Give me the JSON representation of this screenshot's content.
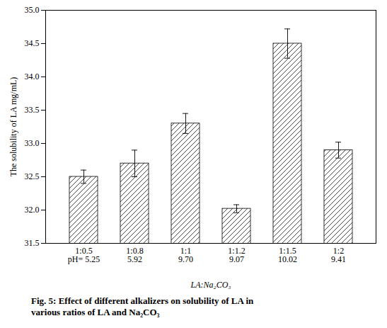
{
  "chart_data": {
    "type": "bar",
    "categories": [
      "1:0.5\npH= 5.25",
      "1:0.8\n5.92",
      "1:1\n9.70",
      "1:1.2\n9.07",
      "1:1.5\n10.02",
      "1:2\n9.41"
    ],
    "values": [
      32.5,
      32.7,
      33.3,
      32.02,
      34.5,
      32.9
    ],
    "errors": [
      0.1,
      0.2,
      0.15,
      0.06,
      0.22,
      0.12
    ],
    "ylabel": "The solubility of LA mg/mL)",
    "xlabel": "LA:Na₂CO₃",
    "ylim": [
      31.5,
      35.0
    ],
    "yticks": [
      31.5,
      {
        "value": 32,
        "label": "32.0"
      },
      32.5,
      {
        "value": 33,
        "label": "33.0"
      },
      33.5,
      {
        "value": 34,
        "label": "34.0"
      },
      34.5,
      {
        "value": 35,
        "label": "35.0"
      }
    ],
    "color": "#ffffff",
    "grid": false,
    "caption": "Fig. 5:  Effect of different alkalizers on solubility of LA in\nvarious ratios of LA and Na₂CO₃"
  }
}
